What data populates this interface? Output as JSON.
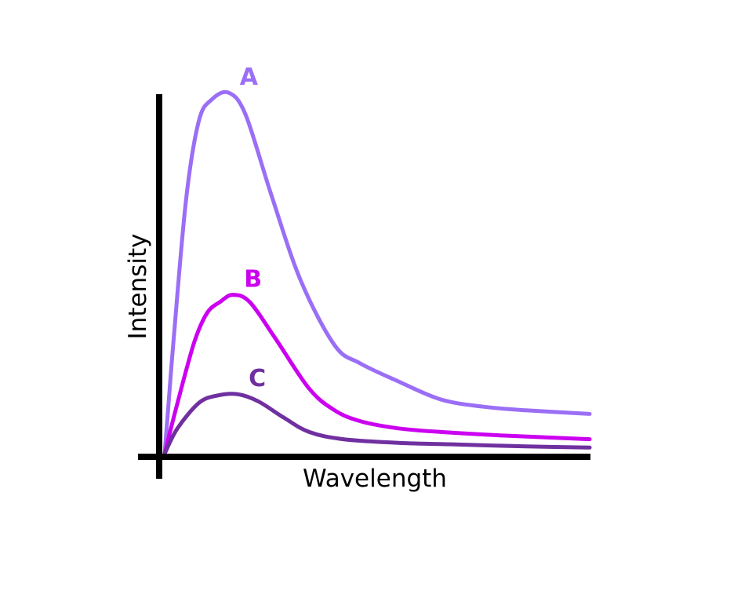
{
  "chart_data": {
    "type": "line",
    "xlabel": "Wavelength",
    "ylabel": "Intensity",
    "x_ticks_shown": false,
    "y_ticks_shown": false,
    "grid": false,
    "xlim": [
      0,
      1
    ],
    "ylim": [
      0,
      1
    ],
    "series": [
      {
        "name": "A",
        "color": "#9b6ef6",
        "points": [
          [
            0.0,
            0.0
          ],
          [
            0.02,
            0.3
          ],
          [
            0.05,
            0.7
          ],
          [
            0.08,
            0.92
          ],
          [
            0.11,
            0.98
          ],
          [
            0.15,
            1.0
          ],
          [
            0.19,
            0.94
          ],
          [
            0.25,
            0.72
          ],
          [
            0.32,
            0.48
          ],
          [
            0.4,
            0.3
          ],
          [
            0.46,
            0.25
          ],
          [
            0.55,
            0.2
          ],
          [
            0.65,
            0.15
          ],
          [
            0.75,
            0.13
          ],
          [
            0.85,
            0.12
          ],
          [
            1.0,
            0.11
          ]
        ]
      },
      {
        "name": "B",
        "color": "#cc00f0",
        "points": [
          [
            0.0,
            0.0
          ],
          [
            0.03,
            0.14
          ],
          [
            0.07,
            0.31
          ],
          [
            0.1,
            0.39
          ],
          [
            0.13,
            0.42
          ],
          [
            0.16,
            0.44
          ],
          [
            0.2,
            0.42
          ],
          [
            0.26,
            0.32
          ],
          [
            0.34,
            0.18
          ],
          [
            0.4,
            0.12
          ],
          [
            0.46,
            0.09
          ],
          [
            0.55,
            0.07
          ],
          [
            0.65,
            0.06
          ],
          [
            0.8,
            0.05
          ],
          [
            1.0,
            0.04
          ]
        ]
      },
      {
        "name": "C",
        "color": "#7030a0",
        "points": [
          [
            0.0,
            0.0
          ],
          [
            0.03,
            0.07
          ],
          [
            0.08,
            0.14
          ],
          [
            0.12,
            0.16
          ],
          [
            0.17,
            0.165
          ],
          [
            0.22,
            0.145
          ],
          [
            0.28,
            0.1
          ],
          [
            0.34,
            0.06
          ],
          [
            0.42,
            0.04
          ],
          [
            0.55,
            0.03
          ],
          [
            0.7,
            0.025
          ],
          [
            0.85,
            0.02
          ],
          [
            1.0,
            0.017
          ]
        ]
      }
    ]
  }
}
